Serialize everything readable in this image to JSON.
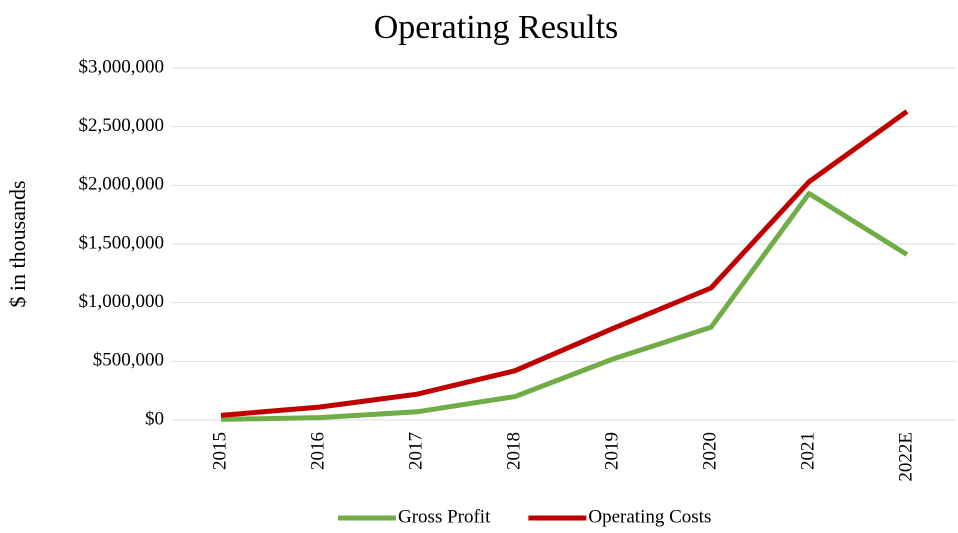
{
  "chart_data": {
    "type": "line",
    "title": "Operating Results",
    "y_label": "$ in thousands",
    "categories": [
      "2015",
      "2016",
      "2017",
      "2018",
      "2019",
      "2020",
      "2021",
      "2022E"
    ],
    "series": [
      {
        "name": "Gross Profit",
        "color": "#70ad47",
        "values": [
          5000,
          20000,
          70000,
          200000,
          520000,
          790000,
          1930000,
          1410000
        ]
      },
      {
        "name": "Operating Costs",
        "color": "#c00000",
        "values": [
          40000,
          110000,
          220000,
          420000,
          780000,
          1125000,
          2030000,
          2630000
        ]
      }
    ],
    "ylim": [
      0,
      3000000
    ],
    "yticks": [
      {
        "value": 0,
        "label": "$0"
      },
      {
        "value": 500000,
        "label": "$500,000"
      },
      {
        "value": 1000000,
        "label": "$1,000,000"
      },
      {
        "value": 1500000,
        "label": "$1,500,000"
      },
      {
        "value": 2000000,
        "label": "$2,000,000"
      },
      {
        "value": 2500000,
        "label": "$2,500,000"
      },
      {
        "value": 3000000,
        "label": "$3,000,000"
      }
    ],
    "grid": true,
    "legend": "bottom"
  }
}
